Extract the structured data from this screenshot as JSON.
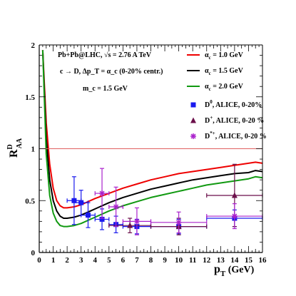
{
  "chart_data": {
    "type": "line",
    "title": "",
    "xlabel": {
      "main": "p",
      "sub": "T",
      "unit": " (GeV)"
    },
    "ylabel": {
      "main": "R",
      "sup": "D",
      "sub": "AA"
    },
    "xlim": [
      0,
      16
    ],
    "ylim": [
      0,
      2
    ],
    "x_ticks": [
      0,
      1,
      2,
      3,
      4,
      5,
      6,
      7,
      8,
      9,
      10,
      11,
      12,
      13,
      14,
      15,
      16
    ],
    "y_ticks": [
      0,
      0.5,
      1,
      1.5,
      2
    ],
    "y_tick_labels": [
      "0",
      "0.5",
      "1",
      "1.5",
      "2"
    ],
    "grid": false,
    "reference_line": {
      "y": 1.0,
      "color": "#e06060"
    },
    "annotations": [
      "Pb+Pb@LHC, √s = 2.76 A TeV",
      "c → D, Δp_T = α_c   (0-20% centr.)",
      "m_c = 1.5 GeV"
    ],
    "legend_position": "top-right",
    "series": [
      {
        "name": "α_c = 1.0 GeV",
        "legend": {
          "sym": "α",
          "sub": "c",
          "rest": " = 1.0 GeV"
        },
        "color": "#ee0000",
        "x": [
          0.25,
          0.5,
          0.75,
          1.0,
          1.25,
          1.5,
          1.75,
          2.0,
          2.5,
          3.0,
          3.5,
          4.0,
          5.0,
          6.0,
          7.0,
          8.0,
          9.0,
          10.0,
          11.0,
          12.0,
          13.0,
          14.0,
          15.0,
          15.5,
          16.0
        ],
        "y": [
          1.95,
          1.25,
          0.85,
          0.62,
          0.5,
          0.45,
          0.43,
          0.43,
          0.44,
          0.46,
          0.49,
          0.52,
          0.57,
          0.62,
          0.66,
          0.7,
          0.73,
          0.76,
          0.78,
          0.8,
          0.82,
          0.84,
          0.86,
          0.87,
          0.86
        ]
      },
      {
        "name": "α_c = 1.5 GeV",
        "legend": {
          "sym": "α",
          "sub": "c",
          "rest": " = 1.5 GeV"
        },
        "color": "#000000",
        "x": [
          0.25,
          0.5,
          0.75,
          1.0,
          1.25,
          1.5,
          1.75,
          2.0,
          2.5,
          3.0,
          3.5,
          4.0,
          5.0,
          6.0,
          7.0,
          8.0,
          9.0,
          10.0,
          11.0,
          12.0,
          13.0,
          14.0,
          15.0,
          15.5,
          16.0
        ],
        "y": [
          1.95,
          1.1,
          0.7,
          0.5,
          0.4,
          0.35,
          0.33,
          0.33,
          0.34,
          0.36,
          0.39,
          0.42,
          0.48,
          0.53,
          0.57,
          0.61,
          0.64,
          0.67,
          0.7,
          0.72,
          0.74,
          0.76,
          0.77,
          0.79,
          0.78
        ]
      },
      {
        "name": "α_c = 2.0 GeV",
        "legend": {
          "sym": "α",
          "sub": "c",
          "rest": " = 2.0 GeV"
        },
        "color": "#119911",
        "x": [
          0.25,
          0.5,
          0.75,
          1.0,
          1.25,
          1.5,
          1.75,
          2.0,
          2.5,
          3.0,
          3.5,
          4.0,
          5.0,
          6.0,
          7.0,
          8.0,
          9.0,
          10.0,
          11.0,
          12.0,
          13.0,
          14.0,
          15.0,
          15.5,
          16.0
        ],
        "y": [
          1.95,
          0.95,
          0.55,
          0.38,
          0.3,
          0.26,
          0.25,
          0.25,
          0.26,
          0.28,
          0.31,
          0.34,
          0.4,
          0.45,
          0.49,
          0.53,
          0.56,
          0.59,
          0.62,
          0.65,
          0.67,
          0.69,
          0.71,
          0.73,
          0.72
        ]
      }
    ],
    "data_series": [
      {
        "name": "D^0, ALICE, 0-20%",
        "legend": {
          "main": "D",
          "sup": "0",
          "rest": ", ALICE, 0-20%"
        },
        "color": "#1a1aee",
        "marker": "square",
        "points": [
          {
            "x": 2.5,
            "y": 0.5,
            "xerr": 0.5,
            "yerr": 0.23
          },
          {
            "x": 3.0,
            "y": 0.48,
            "xerr": 0.5,
            "yerr": 0.12
          },
          {
            "x": 3.5,
            "y": 0.36,
            "xerr": 0.5,
            "yerr": 0.12
          },
          {
            "x": 4.5,
            "y": 0.32,
            "xerr": 0.5,
            "yerr": 0.1
          },
          {
            "x": 5.5,
            "y": 0.27,
            "xerr": 0.5,
            "yerr": 0.08
          },
          {
            "x": 7.0,
            "y": 0.25,
            "xerr": 1.0,
            "yerr": 0.07
          },
          {
            "x": 10.0,
            "y": 0.25,
            "xerr": 2.0,
            "yerr": 0.07
          },
          {
            "x": 14.0,
            "y": 0.33,
            "xerr": 2.0,
            "yerr": 0.08
          }
        ]
      },
      {
        "name": "D^+, ALICE, 0-20 %",
        "legend": {
          "main": "D",
          "sup": "+",
          "rest": ", ALICE, 0-20 %"
        },
        "color": "#6b0f4a",
        "marker": "triangle",
        "points": [
          {
            "x": 6.5,
            "y": 0.26,
            "xerr": 1.5,
            "yerr": 0.07
          },
          {
            "x": 10.0,
            "y": 0.25,
            "xerr": 2.0,
            "yerr": 0.08
          },
          {
            "x": 14.0,
            "y": 0.55,
            "xerr": 2.0,
            "yerr": 0.3
          }
        ]
      },
      {
        "name": "D^*+, ALICE, 0-20 %",
        "legend": {
          "main": "D",
          "sup": "*+",
          "rest": ", ALICE, 0-20 %"
        },
        "color": "#aa22cc",
        "marker": "star",
        "points": [
          {
            "x": 4.5,
            "y": 0.57,
            "xerr": 0.5,
            "yerr": 0.24
          },
          {
            "x": 5.5,
            "y": 0.44,
            "xerr": 0.5,
            "yerr": 0.19
          },
          {
            "x": 7.0,
            "y": 0.3,
            "xerr": 1.0,
            "yerr": 0.13
          },
          {
            "x": 10.0,
            "y": 0.29,
            "xerr": 2.0,
            "yerr": 0.1
          },
          {
            "x": 14.0,
            "y": 0.35,
            "xerr": 2.0,
            "yerr": 0.12
          }
        ]
      }
    ]
  }
}
